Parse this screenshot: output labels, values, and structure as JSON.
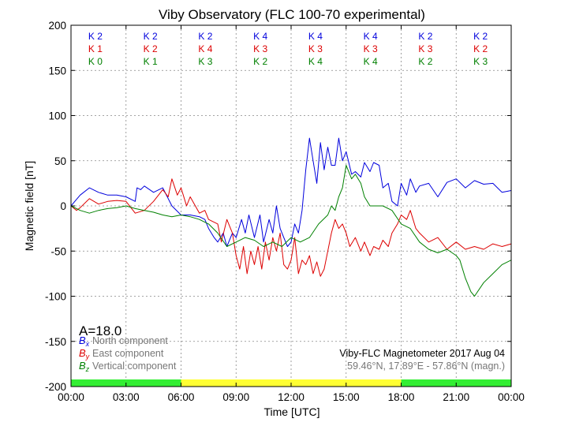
{
  "chart_data": {
    "type": "line",
    "title": "Viby Observatory (FLC 100-70 experimental)",
    "xlabel": "Time [UTC]",
    "ylabel": "Magnetic field [nT]",
    "xlim": [
      0,
      24
    ],
    "ylim": [
      -200,
      200
    ],
    "x_ticks": [
      "00:00",
      "03:00",
      "06:00",
      "09:00",
      "12:00",
      "15:00",
      "18:00",
      "21:00",
      "00:00"
    ],
    "y_ticks": [
      200,
      150,
      100,
      50,
      0,
      -50,
      -100,
      -150,
      -200
    ],
    "grid": true,
    "k_indices": {
      "series_colors": [
        "#0000dd",
        "#dd0000",
        "#008000"
      ],
      "blocks": [
        [
          "K 2",
          "K 1",
          "K 0"
        ],
        [
          "K 2",
          "K 2",
          "K 1"
        ],
        [
          "K 2",
          "K 4",
          "K 3"
        ],
        [
          "K 4",
          "K 3",
          "K 2"
        ],
        [
          "K 4",
          "K 3",
          "K 4"
        ],
        [
          "K 4",
          "K 3",
          "K 4"
        ],
        [
          "K 2",
          "K 3",
          "K 2"
        ],
        [
          "K 2",
          "K 2",
          "K 3"
        ]
      ]
    },
    "activity_bar": [
      {
        "from": 0,
        "to": 6,
        "color": "#33ee33"
      },
      {
        "from": 6,
        "to": 18,
        "color": "#ffff33"
      },
      {
        "from": 18,
        "to": 24,
        "color": "#33ee33"
      }
    ],
    "a_index": "A=18.0",
    "legend": [
      {
        "symbol": "B",
        "sub": "x",
        "label": "North component",
        "color": "#0000dd"
      },
      {
        "symbol": "B",
        "sub": "y",
        "label": "East component",
        "color": "#dd0000"
      },
      {
        "symbol": "B",
        "sub": "z",
        "label": "Vertical component",
        "color": "#008000"
      }
    ],
    "info_line_1": "Viby-FLC Magnetometer 2017 Aug 04",
    "info_line_2": "59.46°N, 17.89°E - 57.86°N (magn.)",
    "series": [
      {
        "color": "#0000dd",
        "x": [
          0,
          0.5,
          1,
          1.5,
          2,
          2.5,
          3,
          3.5,
          3.6,
          3.8,
          4,
          4.5,
          5,
          5.5,
          6,
          6.5,
          7,
          7.3,
          7.5,
          7.8,
          8,
          8.3,
          8.5,
          8.8,
          9,
          9.3,
          9.5,
          9.7,
          10,
          10.3,
          10.5,
          10.8,
          11,
          11.2,
          11.4,
          11.6,
          11.8,
          12,
          12.2,
          12.4,
          12.6,
          12.8,
          13,
          13.2,
          13.4,
          13.6,
          13.8,
          14,
          14.2,
          14.4,
          14.6,
          14.8,
          15,
          15.3,
          15.5,
          15.8,
          16,
          16.3,
          16.5,
          16.8,
          17,
          17.3,
          17.5,
          17.8,
          18,
          18.3,
          18.5,
          18.8,
          19,
          19.5,
          20,
          20.5,
          21,
          21.5,
          22,
          22.5,
          23,
          23.5,
          24
        ],
        "values": [
          0,
          12,
          20,
          15,
          12,
          12,
          10,
          5,
          20,
          18,
          22,
          15,
          20,
          0,
          -10,
          -10,
          -12,
          -15,
          -25,
          -35,
          -40,
          -30,
          -45,
          -30,
          -35,
          -15,
          -30,
          -10,
          -35,
          -10,
          -40,
          -15,
          -30,
          0,
          -25,
          -35,
          -45,
          -40,
          -20,
          -30,
          -5,
          40,
          75,
          50,
          25,
          70,
          40,
          65,
          45,
          45,
          75,
          50,
          60,
          35,
          38,
          32,
          48,
          38,
          48,
          45,
          20,
          25,
          5,
          0,
          25,
          12,
          30,
          15,
          22,
          25,
          10,
          26,
          30,
          20,
          28,
          24,
          25,
          15,
          17
        ]
      },
      {
        "color": "#dd0000",
        "x": [
          0,
          0.3,
          0.5,
          1,
          1.5,
          2,
          2.5,
          3,
          3.5,
          4,
          4.5,
          5,
          5.3,
          5.5,
          5.8,
          6,
          6.3,
          6.5,
          7,
          7.3,
          7.5,
          8,
          8.2,
          8.5,
          8.8,
          9,
          9.2,
          9.4,
          9.6,
          9.8,
          10,
          10.2,
          10.4,
          10.6,
          10.8,
          11,
          11.2,
          11.4,
          11.6,
          11.8,
          12,
          12.2,
          12.4,
          12.6,
          12.8,
          13,
          13.2,
          13.4,
          13.6,
          13.8,
          14,
          14.2,
          14.4,
          14.6,
          14.8,
          15,
          15.2,
          15.5,
          15.8,
          16,
          16.3,
          16.5,
          16.8,
          17,
          17.3,
          17.5,
          17.8,
          18,
          18.3,
          18.5,
          18.8,
          19,
          19.5,
          20,
          20.5,
          21,
          21.5,
          22,
          22.5,
          23,
          23.5,
          24
        ],
        "values": [
          0,
          -5,
          -2,
          8,
          2,
          5,
          6,
          5,
          -8,
          -5,
          5,
          18,
          10,
          30,
          12,
          20,
          0,
          10,
          -8,
          -5,
          -15,
          -20,
          -40,
          -15,
          -30,
          -55,
          -70,
          -45,
          -75,
          -50,
          -65,
          -45,
          -70,
          -40,
          -60,
          -35,
          -50,
          -30,
          -65,
          -70,
          -60,
          -35,
          -75,
          -60,
          -65,
          -55,
          -75,
          -62,
          -78,
          -70,
          -50,
          -30,
          -15,
          -25,
          -20,
          -30,
          -45,
          -35,
          -50,
          -40,
          -55,
          -45,
          -48,
          -38,
          -45,
          -30,
          -20,
          -10,
          -15,
          -5,
          -25,
          -30,
          -40,
          -35,
          -48,
          -40,
          -48,
          -45,
          -48,
          -42,
          -45,
          -42
        ]
      },
      {
        "color": "#008000",
        "x": [
          0,
          0.5,
          1,
          1.5,
          2,
          2.5,
          3,
          3.5,
          4,
          4.5,
          5,
          5.5,
          6,
          6.5,
          7,
          7.5,
          8,
          8.5,
          9,
          9.5,
          10,
          10.5,
          11,
          11.5,
          12,
          12.5,
          13,
          13.5,
          14,
          14.2,
          14.4,
          14.6,
          14.8,
          15,
          15.3,
          15.5,
          15.8,
          16,
          16.3,
          16.5,
          17,
          17.5,
          18,
          18.5,
          19,
          19.5,
          20,
          20.5,
          21,
          21.2,
          21.5,
          21.8,
          22,
          22.5,
          23,
          23.5,
          24
        ],
        "values": [
          0,
          -5,
          -8,
          -5,
          -3,
          -2,
          0,
          -3,
          -5,
          -7,
          -10,
          -12,
          -10,
          -12,
          -15,
          -20,
          -30,
          -45,
          -40,
          -35,
          -38,
          -45,
          -40,
          -45,
          -35,
          -40,
          -35,
          -20,
          -10,
          0,
          -5,
          10,
          20,
          45,
          30,
          35,
          25,
          10,
          0,
          0,
          0,
          -5,
          -20,
          -25,
          -40,
          -48,
          -52,
          -48,
          -55,
          -60,
          -80,
          -95,
          -100,
          -85,
          -75,
          -65,
          -60
        ]
      }
    ]
  }
}
